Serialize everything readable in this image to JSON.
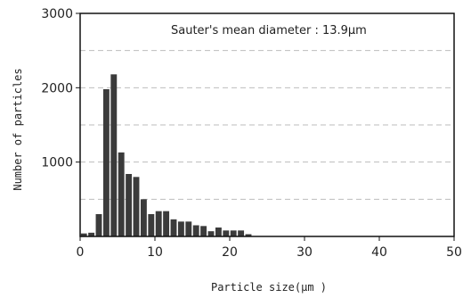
{
  "chart_data": {
    "type": "bar",
    "title": "",
    "xlabel": "Particle size(μm )",
    "ylabel": "Number of particles",
    "annotation": "Sauter's mean diameter : 13.9μm",
    "xlim": [
      0,
      50
    ],
    "ylim": [
      0,
      3000
    ],
    "x_ticks": [
      0,
      10,
      20,
      30,
      40,
      50
    ],
    "y_ticks": [
      3000,
      2000,
      1000
    ],
    "x_tick_labels": [
      "0",
      "10",
      "20",
      "30",
      "40",
      "50"
    ],
    "y_tick_labels": [
      "3000",
      "2000",
      "1000"
    ],
    "grid_y": [
      500,
      1000,
      1500,
      2000,
      2500
    ],
    "x": [
      0.5,
      1.5,
      2.5,
      3.5,
      4.5,
      5.5,
      6.5,
      7.5,
      8.5,
      9.5,
      10.5,
      11.5,
      12.5,
      13.5,
      14.5,
      15.5,
      16.5,
      17.5,
      18.5,
      19.5,
      20.5,
      21.5,
      22.5
    ],
    "values": [
      40,
      50,
      300,
      1980,
      2180,
      1130,
      840,
      800,
      500,
      300,
      340,
      340,
      230,
      200,
      200,
      150,
      140,
      70,
      120,
      80,
      80,
      80,
      30
    ],
    "bar_color": "#3b3b3b",
    "grid_color": "#bdbdbd"
  }
}
